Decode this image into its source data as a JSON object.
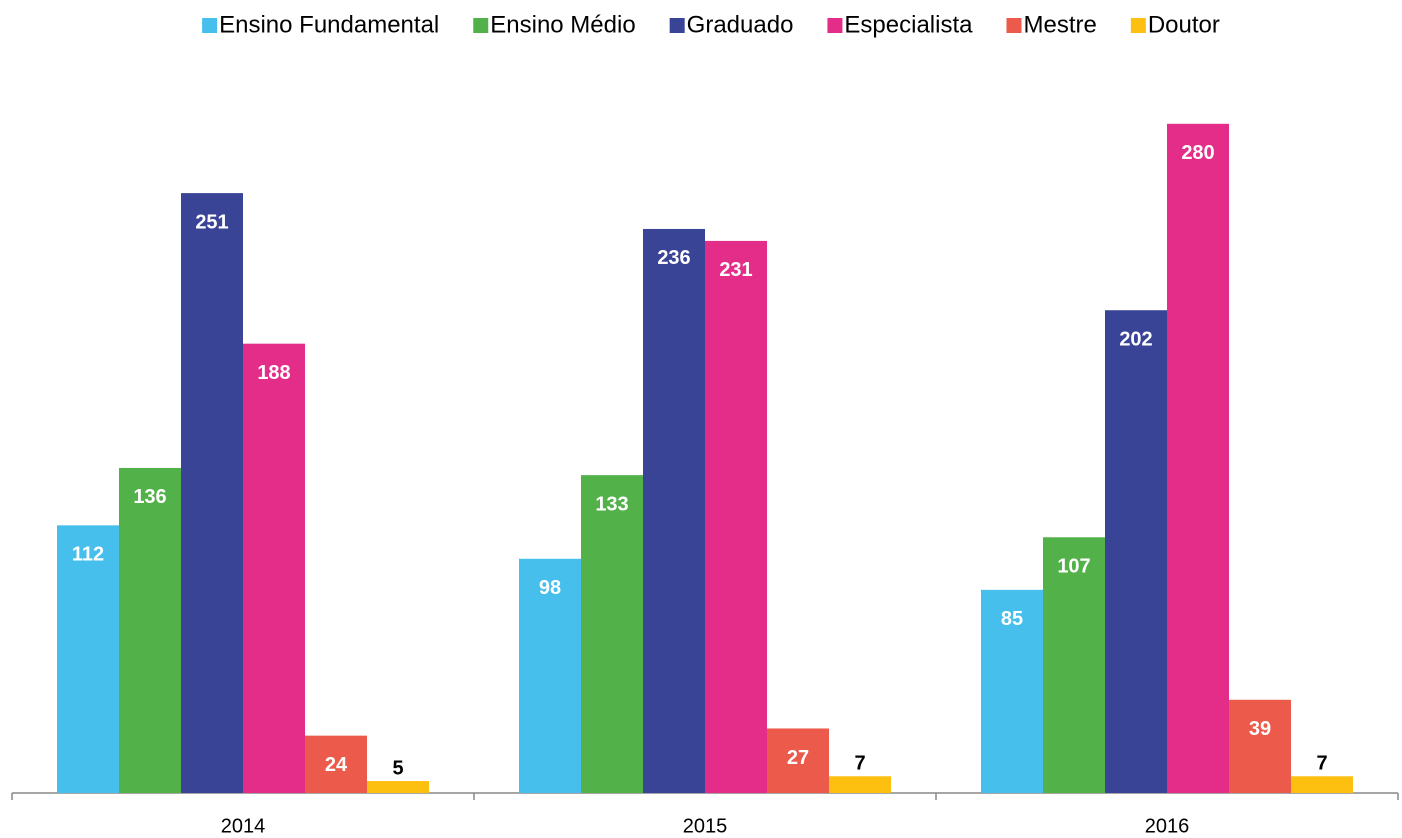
{
  "chart_data": {
    "type": "bar",
    "categories": [
      "2014",
      "2015",
      "2016"
    ],
    "series": [
      {
        "name": "Ensino Fundamental",
        "color": "#46bfec",
        "values": [
          112,
          98,
          85
        ]
      },
      {
        "name": "Ensino Médio",
        "color": "#53b14a",
        "values": [
          136,
          133,
          107
        ]
      },
      {
        "name": "Graduado",
        "color": "#3a4496",
        "values": [
          251,
          236,
          202
        ]
      },
      {
        "name": "Especialista",
        "color": "#e32d89",
        "values": [
          188,
          231,
          280
        ]
      },
      {
        "name": "Mestre",
        "color": "#eb5a4a",
        "values": [
          24,
          27,
          39
        ]
      },
      {
        "name": "Doutor",
        "color": "#fdc010",
        "values": [
          5,
          7,
          7
        ]
      }
    ],
    "ylim": [
      0,
      300
    ],
    "legend": "top"
  }
}
